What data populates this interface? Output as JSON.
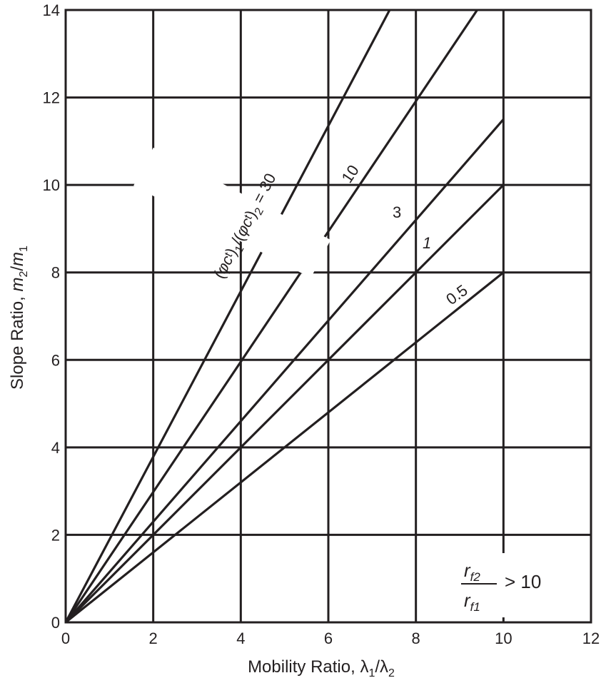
{
  "chart_data": {
    "type": "line",
    "xlabel": "Mobility Ratio, λ1/λ2",
    "ylabel": "Slope Ratio, m2/m1",
    "xlim": [
      0,
      12
    ],
    "ylim": [
      0,
      14
    ],
    "x_ticks": [
      "0",
      "2",
      "4",
      "6",
      "8",
      "10",
      "12"
    ],
    "y_ticks": [
      "0",
      "2",
      "4",
      "6",
      "8",
      "10",
      "12",
      "14"
    ],
    "grid": true,
    "series": [
      {
        "name": "(φct)1/(φct)2 = 30",
        "x": [
          0,
          7.4
        ],
        "y": [
          0,
          14.0
        ]
      },
      {
        "name": "10",
        "x": [
          0,
          9.4
        ],
        "y": [
          0,
          14.0
        ]
      },
      {
        "name": "3",
        "x": [
          0,
          10
        ],
        "y": [
          0,
          11.5
        ]
      },
      {
        "name": "1",
        "x": [
          0,
          10
        ],
        "y": [
          0,
          10.0
        ]
      },
      {
        "name": "0.5",
        "x": [
          0,
          10
        ],
        "y": [
          0,
          8.0
        ]
      }
    ],
    "annotation": {
      "numerator": "r",
      "numerator_sub": "f2",
      "denominator": "r",
      "denominator_sub": "f1",
      "relation": "> 10"
    }
  }
}
